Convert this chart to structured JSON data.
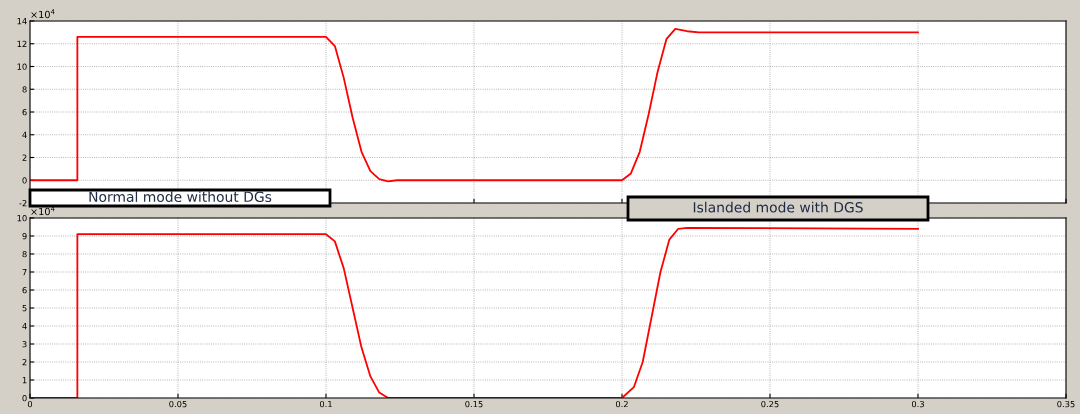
{
  "chart_data": [
    {
      "type": "line",
      "ylabel": "×10$^{4}$",
      "annotations": [
        "Normal mode without DGs",
        "Islanded mode with DGS"
      ],
      "x": [
        0,
        0.016,
        0.016,
        0.1,
        0.103,
        0.106,
        0.109,
        0.112,
        0.115,
        0.118,
        0.121,
        0.124,
        0.2,
        0.203,
        0.206,
        0.209,
        0.212,
        0.215,
        0.218,
        0.222,
        0.226,
        0.3
      ],
      "series": [
        {
          "color": "#ff0000",
          "values": [
            0,
            0,
            12.6,
            12.6,
            11.8,
            9.0,
            5.5,
            2.5,
            0.8,
            0.1,
            -0.1,
            0,
            0,
            0.6,
            2.5,
            5.8,
            9.5,
            12.4,
            13.3,
            13.1,
            13.0,
            13.0
          ]
        }
      ],
      "xlim": [
        0,
        0.35
      ],
      "xticks": [
        0,
        0.05,
        0.1,
        0.15,
        0.2,
        0.25,
        0.3,
        0.35
      ],
      "ylim": [
        -2,
        14
      ],
      "yticks": [
        -2,
        0,
        2,
        4,
        6,
        8,
        10,
        12,
        14
      ],
      "tick_labels": "y",
      "grid": true,
      "legend": false
    },
    {
      "type": "line",
      "ylabel": "×10$^{4}$",
      "x": [
        0,
        0.016,
        0.016,
        0.1,
        0.103,
        0.106,
        0.109,
        0.112,
        0.115,
        0.118,
        0.121,
        0.124,
        0.2,
        0.204,
        0.207,
        0.21,
        0.213,
        0.216,
        0.219,
        0.222,
        0.3
      ],
      "series": [
        {
          "color": "#ff0000",
          "values": [
            0,
            0,
            9.1,
            9.1,
            8.7,
            7.2,
            5.0,
            2.8,
            1.2,
            0.3,
            0,
            0,
            0,
            0.6,
            2.0,
            4.5,
            7.0,
            8.8,
            9.4,
            9.45,
            9.4
          ]
        }
      ],
      "xlim": [
        0,
        0.35
      ],
      "xticks": [
        0,
        0.05,
        0.1,
        0.15,
        0.2,
        0.25,
        0.3,
        0.35
      ],
      "ylim": [
        0,
        10
      ],
      "yticks": [
        0,
        1,
        2,
        3,
        4,
        5,
        6,
        7,
        8,
        9,
        10
      ],
      "grid": true,
      "legend": false
    }
  ]
}
